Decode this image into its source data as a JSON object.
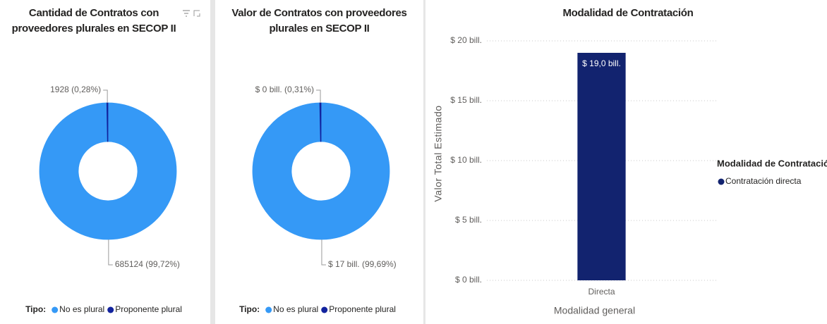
{
  "chart_data": [
    {
      "type": "donut",
      "title": "Cantidad de Contratos con proveedores plurales en SECOP II",
      "categories": [
        "No es plural",
        "Proponente plural"
      ],
      "values": [
        685124,
        1928
      ],
      "value_labels": [
        "685124 (99,72%)",
        "1928 (0,28%)"
      ],
      "colors": [
        "#3599f6",
        "#12239e"
      ],
      "legend_title": "Tipo:",
      "legend": "bottom"
    },
    {
      "type": "donut",
      "title": "Valor de Contratos con proveedores plurales en SECOP II",
      "categories": [
        "No es plural",
        "Proponente plural"
      ],
      "values": [
        16.95,
        0.053
      ],
      "value_labels": [
        "$ 17 bill. (99,69%)",
        "$ 0 bill. (0,31%)"
      ],
      "colors": [
        "#3599f6",
        "#12239e"
      ],
      "legend_title": "Tipo:",
      "legend": "bottom"
    },
    {
      "type": "bar",
      "title": "Modalidad de Contratación",
      "categories": [
        "Directa"
      ],
      "series": [
        {
          "name": "Contratación directa",
          "color": "#12236f",
          "values": [
            19.0
          ],
          "value_labels": [
            "$ 19,0 bill."
          ]
        }
      ],
      "ylabel": "Valor Total Estimado",
      "xlabel": "Modalidad general",
      "ylim": [
        0,
        20
      ],
      "yticks": [
        {
          "value": 0,
          "label": "$ 0 bill."
        },
        {
          "value": 5,
          "label": "$ 5 bill."
        },
        {
          "value": 10,
          "label": "$ 10 bill."
        },
        {
          "value": 15,
          "label": "$ 15 bill."
        },
        {
          "value": 20,
          "label": "$ 20 bill."
        }
      ],
      "grid": true,
      "legend_title": "Modalidad de Contratación",
      "legend": "right"
    }
  ]
}
